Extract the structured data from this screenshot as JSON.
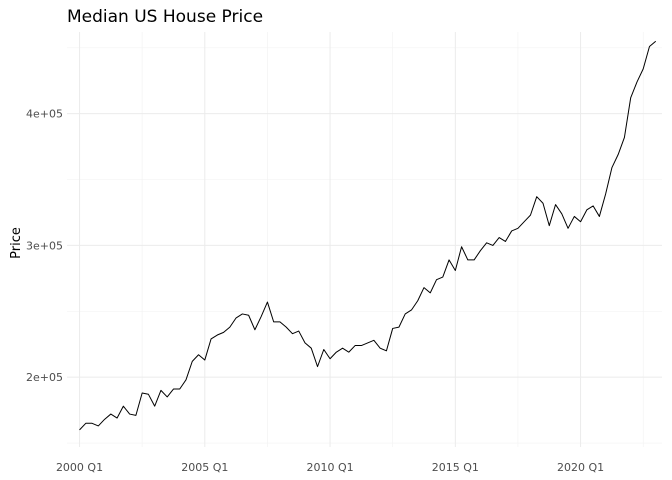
{
  "chart_data": {
    "type": "line",
    "title": "Median US House Price",
    "xlabel": "",
    "ylabel": "Price",
    "x_tick_labels": [
      {
        "label": "2000 Q1",
        "index": 0
      },
      {
        "label": "2005 Q1",
        "index": 20
      },
      {
        "label": "2010 Q1",
        "index": 40
      },
      {
        "label": "2015 Q1",
        "index": 60
      },
      {
        "label": "2020 Q1",
        "index": 80
      }
    ],
    "y_tick_labels": [
      {
        "label": "2e+05",
        "value": 200000
      },
      {
        "label": "3e+05",
        "value": 300000
      },
      {
        "label": "4e+05",
        "value": 400000
      }
    ],
    "xlim": [
      -2,
      93
    ],
    "ylim": [
      147000,
      462000
    ],
    "grid": true,
    "x_start": "2000 Q1",
    "frequency": "quarterly",
    "series": [
      {
        "values": [
          160000,
          165000,
          165000,
          163000,
          168000,
          172000,
          169000,
          178000,
          172000,
          171000,
          188000,
          187000,
          178000,
          190000,
          185000,
          191000,
          191000,
          198000,
          212000,
          217000,
          213000,
          229000,
          232000,
          234000,
          238000,
          245000,
          248000,
          247000,
          236000,
          246000,
          257000,
          242000,
          242000,
          238000,
          233000,
          235000,
          226000,
          222000,
          208000,
          221000,
          214000,
          219000,
          222000,
          219000,
          224000,
          224000,
          226000,
          228000,
          222000,
          220000,
          237000,
          238000,
          248000,
          251000,
          258000,
          268000,
          264000,
          274000,
          276000,
          289000,
          281000,
          299000,
          289000,
          289000,
          296000,
          302000,
          300000,
          306000,
          303000,
          311000,
          313000,
          318000,
          323000,
          337000,
          332000,
          315000,
          331000,
          324000,
          313000,
          322000,
          318000,
          327000,
          330000,
          322000,
          339000,
          359000,
          369000,
          382000,
          412000,
          424000,
          434000,
          451000,
          455000
        ]
      }
    ]
  }
}
